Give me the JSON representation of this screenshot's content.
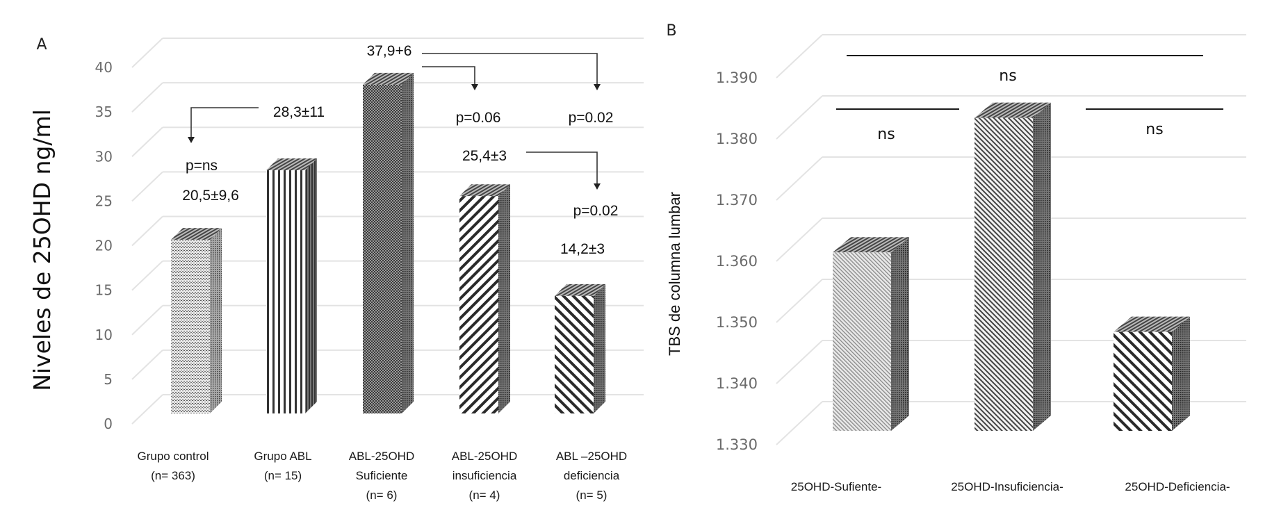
{
  "chart_data": [
    {
      "panel": "A",
      "type": "bar",
      "style": "3d-column",
      "title": "",
      "ylabel": "Niveles de 25OHD ng/ml",
      "xlabel": "",
      "ylim": [
        0,
        40
      ],
      "yticks": [
        "0",
        "5",
        "10",
        "15",
        "20",
        "25",
        "30",
        "35",
        "40"
      ],
      "grid": true,
      "categories": [
        [
          "Grupo control",
          "(n= 363)"
        ],
        [
          "Grupo ABL",
          "(n= 15)"
        ],
        [
          "ABL-25OHD",
          "Suficiente",
          "(n= 6)"
        ],
        [
          "ABL-25OHD",
          "insuficiencia",
          "(n= 4)"
        ],
        [
          "ABL –25OHD",
          "deficiencia",
          "(n= 5)"
        ]
      ],
      "values": [
        20.5,
        28.3,
        37.9,
        25.4,
        14.2
      ],
      "value_labels": [
        "20,5±9,6",
        "28,3±11",
        "37,9+6",
        "25,4±3",
        "14,2±3"
      ],
      "annotations": [
        {
          "from": "Grupo ABL",
          "to": "Grupo control",
          "text": "p=ns"
        },
        {
          "from": "ABL-25OHD Suficiente",
          "to": "ABL-25OHD insuficiencia",
          "text": "p=0.06"
        },
        {
          "from": "ABL-25OHD Suficiente",
          "to": "ABL –25OHD deficiencia",
          "text": "p=0.02"
        },
        {
          "from": "ABL-25OHD insuficiencia",
          "to": "ABL –25OHD deficiencia",
          "text": "p=0.02"
        }
      ]
    },
    {
      "panel": "B",
      "type": "bar",
      "style": "3d-column",
      "title": "",
      "ylabel": "TBS de columna lumbar",
      "xlabel": "",
      "ylim": [
        1.33,
        1.39
      ],
      "yticks": [
        "1.330",
        "1.340",
        "1.350",
        "1.360",
        "1.370",
        "1.380",
        "1.390"
      ],
      "grid": true,
      "categories": [
        "25OHD-Sufiente-",
        "25OHD-Insuficiencia-",
        "25OHD-Deficiencia-"
      ],
      "values": [
        1.361,
        1.383,
        1.348
      ],
      "annotations": [
        {
          "between": [
            "25OHD-Sufiente-",
            "25OHD-Deficiencia-"
          ],
          "text": "ns"
        },
        {
          "between": [
            "25OHD-Sufiente-",
            "25OHD-Insuficiencia-"
          ],
          "text": "ns"
        },
        {
          "between": [
            "25OHD-Insuficiencia-",
            "25OHD-Deficiencia-"
          ],
          "text": "ns"
        }
      ]
    }
  ]
}
